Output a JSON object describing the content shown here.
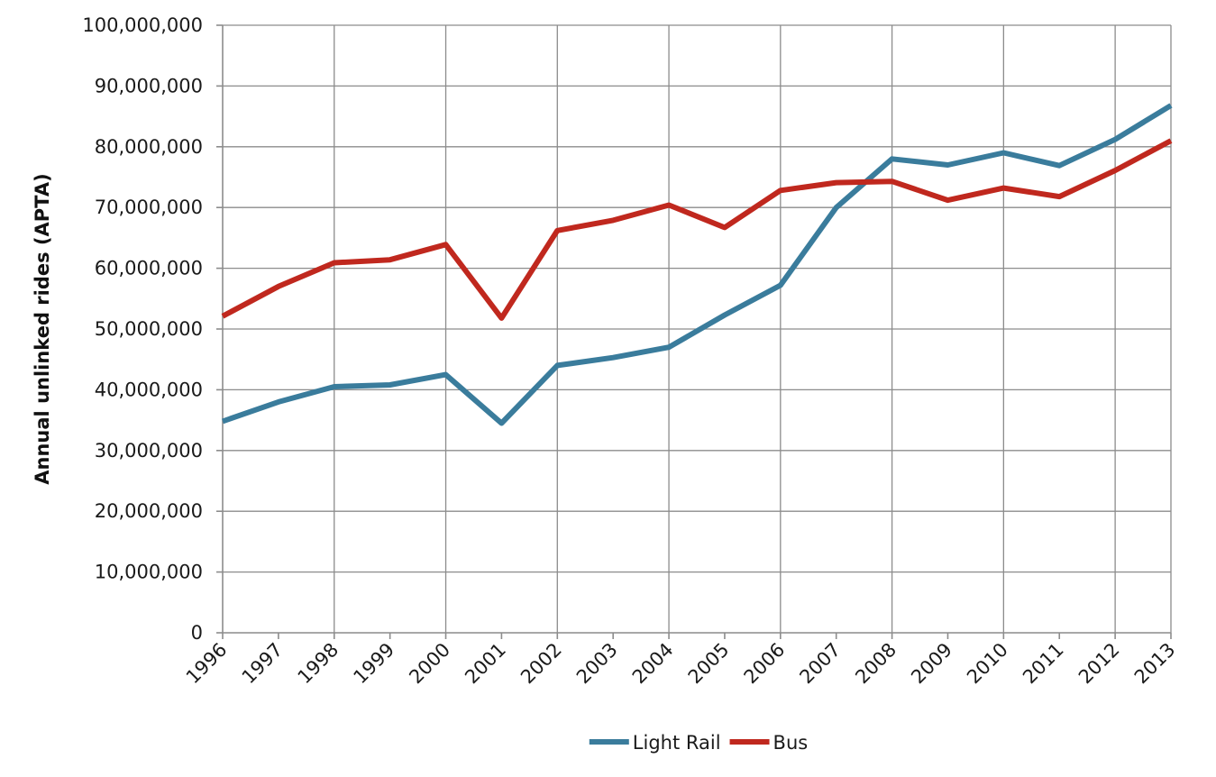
{
  "chart_data": {
    "type": "line",
    "title": "",
    "xlabel": "",
    "ylabel": "Annual unlinked rides (APTA)",
    "categories": [
      "1996",
      "1997",
      "1998",
      "1999",
      "2000",
      "2001",
      "2002",
      "2003",
      "2004",
      "2005",
      "2006",
      "2007",
      "2008",
      "2009",
      "2010",
      "2011",
      "2012",
      "2013"
    ],
    "y_tick_labels": [
      "0",
      "10,000,000",
      "20,000,000",
      "30,000,000",
      "40,000,000",
      "50,000,000",
      "60,000,000",
      "70,000,000",
      "80,000,000",
      "90,000,000",
      "100,000,000"
    ],
    "ylim": [
      0,
      100000000
    ],
    "y_step": 10000000,
    "grid": true,
    "legend_position": "bottom",
    "series": [
      {
        "name": "Light Rail",
        "color": "#3a7c9c",
        "values": [
          34800000,
          38000000,
          40500000,
          40800000,
          42500000,
          34500000,
          44000000,
          45300000,
          47000000,
          52300000,
          57200000,
          70000000,
          78000000,
          77000000,
          79000000,
          76900000,
          81200000,
          86800000
        ]
      },
      {
        "name": "Bus",
        "color": "#c0281e",
        "values": [
          52100000,
          57000000,
          60900000,
          61400000,
          63900000,
          51800000,
          66200000,
          67900000,
          70400000,
          66700000,
          72800000,
          74100000,
          74300000,
          71200000,
          73200000,
          71800000,
          76100000,
          81000000
        ]
      }
    ]
  }
}
